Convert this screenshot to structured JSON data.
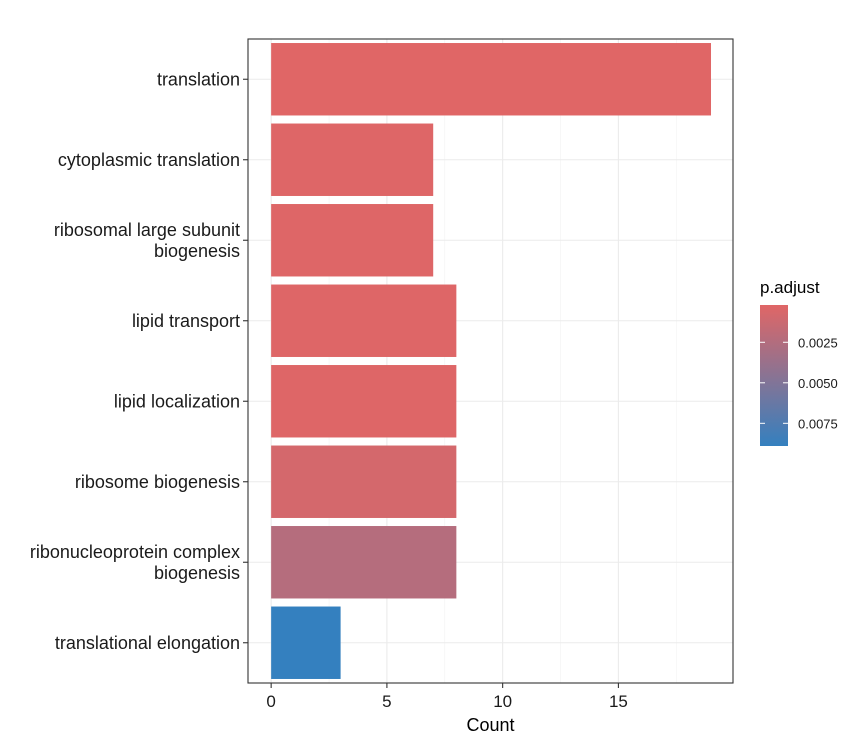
{
  "chart_data": {
    "type": "bar",
    "orientation": "horizontal",
    "categories": [
      [
        "translation"
      ],
      [
        "cytoplasmic translation"
      ],
      [
        "ribosomal large subunit",
        "biogenesis"
      ],
      [
        "lipid transport"
      ],
      [
        "lipid localization"
      ],
      [
        "ribosome biogenesis"
      ],
      [
        "ribonucleoprotein complex",
        "biogenesis"
      ],
      [
        "translational elongation"
      ]
    ],
    "values": [
      19,
      7,
      7,
      8,
      8,
      8,
      8,
      3
    ],
    "p_adjust": [
      0.0002,
      0.0003,
      0.0003,
      0.0003,
      0.0003,
      0.0008,
      0.0024,
      0.0089
    ],
    "xlabel": "Count",
    "ylabel": "",
    "xlim": [
      -1,
      19.95
    ],
    "xticks": [
      0,
      5,
      10,
      15
    ],
    "grid": true,
    "legend": {
      "title": "p.adjust",
      "placement": "right",
      "range": [
        0.0002,
        0.0089
      ],
      "ticks": [
        0.0025,
        0.005,
        0.0075
      ],
      "tick_labels": [
        "0.0025",
        "0.0050",
        "0.0075"
      ],
      "color_low": "#e06666",
      "color_high": "#3480bf"
    }
  }
}
